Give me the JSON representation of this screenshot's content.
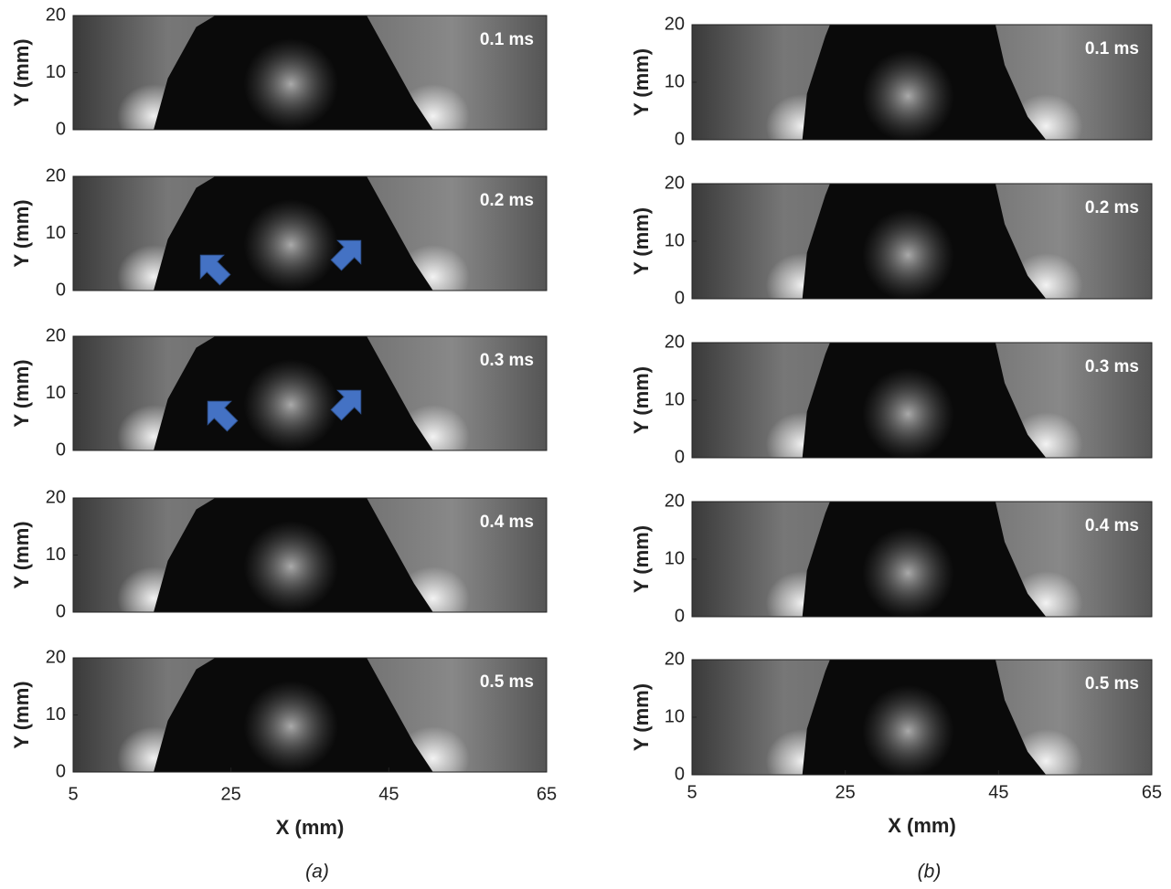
{
  "y_axis": {
    "label": "Y (mm)",
    "ticks": [
      0,
      10,
      20
    ],
    "lim": [
      0,
      20
    ]
  },
  "x_axis": {
    "label": "X (mm)",
    "ticks": [
      5,
      25,
      45,
      65
    ],
    "lim": [
      5,
      65
    ]
  },
  "columns": [
    {
      "caption": "(a)",
      "frames": [
        "0.1 ms",
        "0.2 ms",
        "0.3 ms",
        "0.4 ms",
        "0.5 ms"
      ]
    },
    {
      "caption": "(b)",
      "frames": [
        "0.1 ms",
        "0.2 ms",
        "0.3 ms",
        "0.4 ms",
        "0.5 ms"
      ]
    }
  ]
}
